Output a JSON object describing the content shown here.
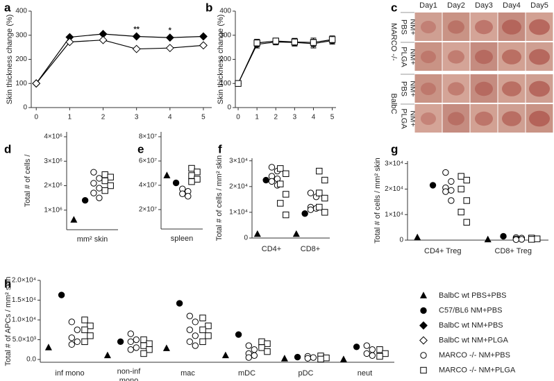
{
  "chart_data": [
    {
      "panel": "a",
      "type": "line",
      "y_label": "Skin thickness change (%)",
      "x": [
        0,
        1,
        2,
        3,
        4,
        5
      ],
      "xlim": [
        -0.15,
        5.25
      ],
      "xticks": [
        0,
        1,
        2,
        3,
        4,
        5
      ],
      "ylim": [
        0,
        400
      ],
      "yticks": [
        0,
        100,
        200,
        300,
        400
      ],
      "series": [
        {
          "marker": "diamond-filled",
          "color": "#000000",
          "values": [
            100,
            292,
            305,
            295,
            290,
            295
          ]
        },
        {
          "marker": "diamond-open",
          "color": "#000000",
          "values": [
            100,
            272,
            280,
            243,
            247,
            258
          ]
        }
      ],
      "annotations": [
        {
          "x": 3,
          "text": "**"
        },
        {
          "x": 4,
          "text": "*"
        }
      ]
    },
    {
      "panel": "b",
      "type": "line",
      "y_label": "Skin thickness change (%)",
      "x": [
        0,
        1,
        2,
        3,
        4,
        5
      ],
      "xlim": [
        -0.15,
        5.2
      ],
      "xticks": [
        0,
        1,
        2,
        3,
        4,
        5
      ],
      "ylim": [
        0,
        400
      ],
      "yticks": [
        0,
        100,
        200,
        300,
        400
      ],
      "series": [
        {
          "marker": "circle-open",
          "color": "#000000",
          "values": [
            100,
            262,
            272,
            270,
            265,
            278
          ],
          "errors": [
            10,
            15,
            12,
            15,
            18,
            15
          ]
        },
        {
          "marker": "square-open",
          "color": "#000000",
          "values": [
            100,
            268,
            276,
            272,
            270,
            282
          ],
          "errors": [
            10,
            15,
            12,
            15,
            18,
            15
          ]
        }
      ]
    },
    {
      "panel": "d",
      "type": "strip",
      "y_label": "Total # of cells /",
      "x_label": "mm² skin",
      "categories": [
        null
      ],
      "ylim": [
        200000,
        4200000
      ],
      "yticks": [
        {
          "value": 1000000,
          "label": "1×10⁶"
        },
        {
          "value": 2000000,
          "label": "2×10⁶"
        },
        {
          "value": 3000000,
          "label": "3×10⁶"
        },
        {
          "value": 4000000,
          "label": "4×10⁶"
        }
      ],
      "series": [
        {
          "marker": "triangle",
          "color": "#000000",
          "values": [
            [
              600000
            ]
          ]
        },
        {
          "marker": "circle-filled",
          "color": "#000000",
          "values": [
            [
              1400000
            ]
          ]
        },
        {
          "marker": "circle-open",
          "color": "#000000",
          "values": [
            [
              2550000,
              2300000,
              2100000,
              1900000,
              1700000,
              1500000
            ]
          ]
        },
        {
          "marker": "square-open",
          "color": "#000000",
          "values": [
            [
              2450000,
              2350000,
              2200000,
              2000000,
              1800000
            ]
          ]
        }
      ]
    },
    {
      "panel": "e",
      "type": "strip",
      "x_label": "spleen",
      "categories": [
        null
      ],
      "ylim": [
        4000000,
        84000000
      ],
      "yticks": [
        {
          "value": 20000000,
          "label": "2×10⁷"
        },
        {
          "value": 40000000,
          "label": "4×10⁷"
        },
        {
          "value": 60000000,
          "label": "6×10⁷"
        },
        {
          "value": 80000000,
          "label": "8×10⁷"
        }
      ],
      "series": [
        {
          "marker": "triangle",
          "color": "#000000",
          "values": [
            [
              48000000
            ]
          ]
        },
        {
          "marker": "circle-filled",
          "color": "#000000",
          "values": [
            [
              42000000
            ]
          ]
        },
        {
          "marker": "circle-open",
          "color": "#000000",
          "values": [
            [
              37000000,
              35000000,
              33000000,
              31000000
            ]
          ]
        },
        {
          "marker": "square-open",
          "color": "#000000",
          "values": [
            [
              54000000,
              51000000,
              48000000,
              45000000,
              43000000
            ]
          ]
        }
      ]
    },
    {
      "panel": "f",
      "type": "strip",
      "y_label": "Total # of cells / mm² skin",
      "categories": [
        "CD4+",
        "CD8+"
      ],
      "ylim": [
        0,
        31000
      ],
      "yticks": [
        0,
        {
          "value": 10000,
          "label": "1×10⁴"
        },
        {
          "value": 20000,
          "label": "2×10⁴"
        },
        {
          "value": 30000,
          "label": "3×10⁴"
        }
      ],
      "series": [
        {
          "marker": "triangle",
          "color": "#000000",
          "values": [
            [
              1500
            ],
            [
              1500
            ]
          ]
        },
        {
          "marker": "circle-filled",
          "color": "#000000",
          "values": [
            [
              22500
            ],
            [
              9500
            ]
          ]
        },
        {
          "marker": "circle-open",
          "color": "#000000",
          "values": [
            [
              27500,
              26000,
              24000,
              23000,
              22000,
              20500
            ],
            [
              17500,
              16000,
              12000,
              11500,
              11000
            ]
          ]
        },
        {
          "marker": "square-open",
          "color": "#000000",
          "values": [
            [
              27000,
              25000,
              21000,
              17000,
              13500,
              9000
            ],
            [
              26000,
              22500,
              17500,
              15500,
              12000,
              10000
            ]
          ]
        }
      ]
    },
    {
      "panel": "g",
      "type": "strip",
      "y_label": "Total # of cells / mm² skin",
      "categories": [
        "CD4+ Treg",
        "CD8+ Treg"
      ],
      "ylim": [
        0,
        31000
      ],
      "yticks": [
        0,
        {
          "value": 10000,
          "label": "1×10⁴"
        },
        {
          "value": 20000,
          "label": "2×10⁴"
        },
        {
          "value": 30000,
          "label": "3×10⁴"
        }
      ],
      "series": [
        {
          "marker": "triangle",
          "color": "#000000",
          "values": [
            [
              1000
            ],
            [
              200
            ]
          ]
        },
        {
          "marker": "circle-filled",
          "color": "#000000",
          "values": [
            [
              21500
            ],
            [
              1500
            ]
          ]
        },
        {
          "marker": "circle-open",
          "color": "#000000",
          "values": [
            [
              26500,
              23000,
              20500,
              19500,
              19000,
              15500
            ],
            [
              1000,
              800,
              500,
              300,
              200
            ]
          ]
        },
        {
          "marker": "square-open",
          "color": "#000000",
          "values": [
            [
              25000,
              23500,
              20000,
              15500,
              11000,
              7000
            ],
            [
              800,
              500,
              300
            ]
          ]
        }
      ]
    },
    {
      "panel": "h",
      "type": "strip",
      "y_label": "Total # of APCs / mm² skin",
      "categories": [
        "inf mono",
        "non-inf\nmono",
        "mac",
        "mDC",
        "pDC",
        "neut"
      ],
      "ylim": [
        -700,
        20000
      ],
      "yticks": [
        {
          "value": 0,
          "label": "0.0"
        },
        {
          "value": 5000,
          "label": "5.0×10³"
        },
        {
          "value": 10000,
          "label": "1.0×10⁴"
        },
        {
          "value": 15000,
          "label": "1.5×10⁴"
        },
        {
          "value": 20000,
          "label": "2.0×10⁴"
        }
      ],
      "series": [
        {
          "marker": "triangle",
          "color": "#000000",
          "values": [
            [
              3000
            ],
            [
              1000
            ],
            [
              2800
            ],
            [
              1000
            ],
            [
              200
            ],
            [
              0
            ]
          ]
        },
        {
          "marker": "circle-filled",
          "color": "#000000",
          "values": [
            [
              16300
            ],
            [
              4500
            ],
            [
              14200
            ],
            [
              6300
            ],
            [
              600
            ],
            [
              3200
            ]
          ]
        },
        {
          "marker": "circle-open",
          "color": "#000000",
          "values": [
            [
              9500,
              7500,
              5500,
              4500,
              3800
            ],
            [
              6500,
              5000,
              4500,
              3000,
              2500
            ],
            [
              11000,
              9500,
              7500,
              6000,
              4500,
              3500
            ],
            [
              3500,
              2500,
              1500,
              1000,
              500
            ],
            [
              800,
              500,
              300
            ],
            [
              3500,
              2500,
              1500,
              1000
            ]
          ]
        },
        {
          "marker": "square-open",
          "color": "#000000",
          "values": [
            [
              10000,
              8500,
              7500,
              6000,
              4500
            ],
            [
              5000,
              4000,
              3500,
              2500,
              1500
            ],
            [
              10500,
              8500,
              7500,
              6000,
              4500
            ],
            [
              4500,
              4000,
              3000,
              2000
            ],
            [
              900,
              400,
              100
            ],
            [
              2500,
              1500,
              800
            ]
          ]
        }
      ]
    }
  ],
  "photo_panel": {
    "panel": "c",
    "columns": [
      "Day1",
      "Day2",
      "Day3",
      "Day4",
      "Day5"
    ],
    "groups": [
      {
        "name": "MARCO -/-",
        "rows": [
          "NM+\nPBS",
          "NM+\nPLGA"
        ]
      },
      {
        "name": "BalbC",
        "rows": [
          "NM+\nPBS",
          "NM+\nPLGA"
        ]
      }
    ]
  },
  "legend": {
    "entries": [
      {
        "marker": "triangle",
        "name": "BalbC wt PBS+PBS"
      },
      {
        "marker": "circle-filled",
        "name": "C57/BL6 NM+PBS"
      },
      {
        "marker": "diamond-filled",
        "name": "BalbC wt NM+PBS"
      },
      {
        "marker": "diamond-open",
        "name": "BalbC wt NM+PLGA"
      },
      {
        "marker": "circle-open",
        "name": "MARCO -/- NM+PBS"
      },
      {
        "marker": "square-open",
        "name": "MARCO -/- NM+PLGA"
      }
    ]
  }
}
